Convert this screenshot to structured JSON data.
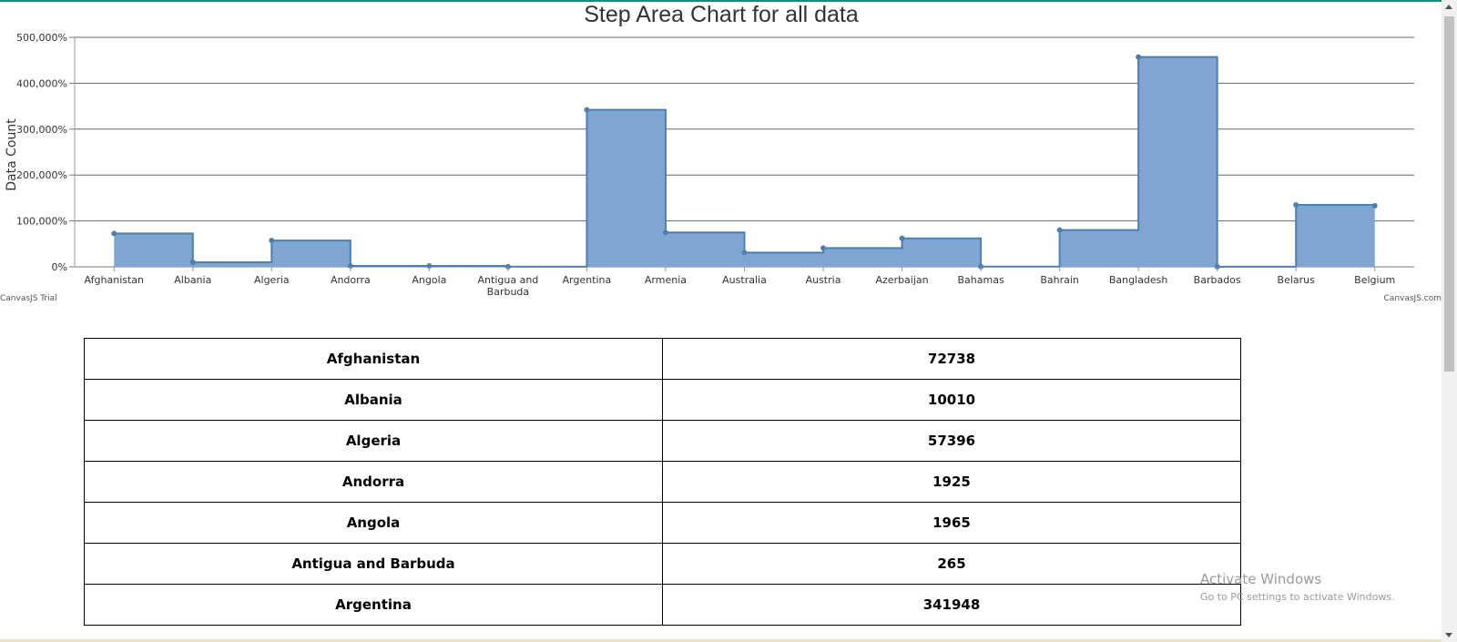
{
  "chart_data": {
    "type": "area",
    "title": "Step Area Chart for all data",
    "xlabel": "",
    "ylabel": "Data Count",
    "ylim": [
      0,
      500000
    ],
    "y_ticks": [
      "0%",
      "100,000%",
      "200,000%",
      "300,000%",
      "400,000%",
      "500,000%"
    ],
    "grid": true,
    "step": true,
    "categories": [
      "Afghanistan",
      "Albania",
      "Algeria",
      "Andorra",
      "Angola",
      "Antigua and Barbuda",
      "Argentina",
      "Armenia",
      "Australia",
      "Austria",
      "Azerbaijan",
      "Bahamas",
      "Bahrain",
      "Bangladesh",
      "Barbados",
      "Belarus",
      "Belgium"
    ],
    "tick_labels": [
      [
        "Afghanistan"
      ],
      [
        "Albania"
      ],
      [
        "Algeria"
      ],
      [
        "Andorra"
      ],
      [
        "Angola"
      ],
      [
        "Antigua and",
        "Barbuda"
      ],
      [
        "Argentina"
      ],
      [
        "Armenia"
      ],
      [
        "Australia"
      ],
      [
        "Austria"
      ],
      [
        "Azerbaijan"
      ],
      [
        "Bahamas"
      ],
      [
        "Bahrain"
      ],
      [
        "Bangladesh"
      ],
      [
        "Barbados"
      ],
      [
        "Belarus"
      ],
      [
        "Belgium"
      ]
    ],
    "values": [
      72738,
      10010,
      57396,
      1925,
      1965,
      265,
      341948,
      75000,
      31000,
      41000,
      62000,
      500,
      80000,
      457000,
      300,
      135000,
      133000
    ],
    "fill_color": "#7fa5d2",
    "line_color": "#4f7fb0"
  },
  "credits": {
    "left": "CanvasJS Trial",
    "right": "CanvasJS.com"
  },
  "table": {
    "rows": [
      {
        "country": "Afghanistan",
        "count": "72738"
      },
      {
        "country": "Albania",
        "count": "10010"
      },
      {
        "country": "Algeria",
        "count": "57396"
      },
      {
        "country": "Andorra",
        "count": "1925"
      },
      {
        "country": "Angola",
        "count": "1965"
      },
      {
        "country": "Antigua and Barbuda",
        "count": "265"
      },
      {
        "country": "Argentina",
        "count": "341948"
      }
    ]
  },
  "watermark": {
    "line1": "Activate Windows",
    "line2": "Go to PC settings to activate Windows."
  }
}
